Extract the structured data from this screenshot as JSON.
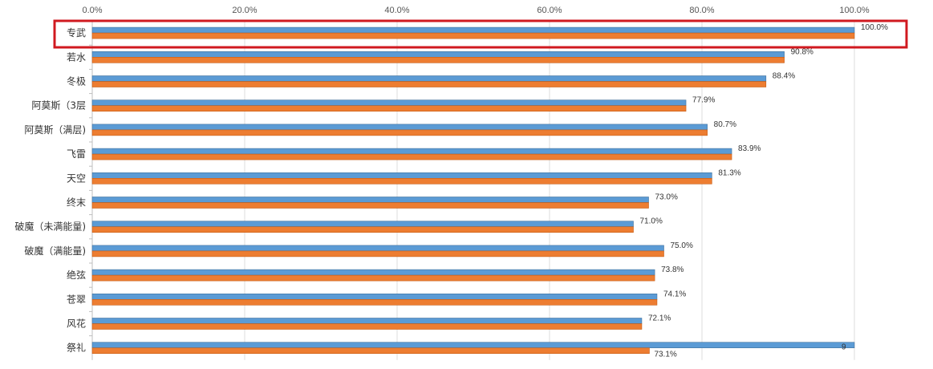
{
  "chart_data": {
    "type": "bar",
    "orientation": "horizontal",
    "title": "",
    "xlabel": "",
    "ylabel": "",
    "xlim": [
      0,
      100
    ],
    "x_ticks": [
      "0.0%",
      "20.0%",
      "40.0%",
      "60.0%",
      "80.0%",
      "100.0%"
    ],
    "x_tick_values": [
      0,
      20,
      40,
      60,
      80,
      100
    ],
    "x_axis_position": "top",
    "grid": true,
    "legend": "none",
    "categories": [
      "专武",
      "若水",
      "冬极",
      "阿莫斯（3层",
      "阿莫斯（满层)",
      "飞雷",
      "天空",
      "终末",
      "破魔（未满能量)",
      "破魔（满能量)",
      "绝弦",
      "苍翠",
      "风花",
      "祭礼"
    ],
    "series": [
      {
        "color": "#5b9bd5",
        "values": [
          100.0,
          90.8,
          88.4,
          77.9,
          80.7,
          83.9,
          81.3,
          73.0,
          71.0,
          75.0,
          73.8,
          74.1,
          72.1,
          100.0
        ]
      },
      {
        "color": "#ed7d31",
        "values": [
          100.0,
          90.8,
          88.4,
          77.9,
          80.7,
          83.9,
          81.3,
          73.0,
          71.0,
          75.0,
          73.8,
          74.1,
          72.1,
          73.1
        ]
      }
    ],
    "data_labels": [
      "100.0%",
      "90.8%",
      "88.4%",
      "77.9%",
      "80.7%",
      "83.9%",
      "81.3%",
      "73.0%",
      "71.0%",
      "75.0%",
      "73.8%",
      "74.1%",
      "72.1%",
      "73.1%"
    ],
    "partial_label": "9",
    "highlight": {
      "category": "专武",
      "color": "#d0191f"
    }
  }
}
